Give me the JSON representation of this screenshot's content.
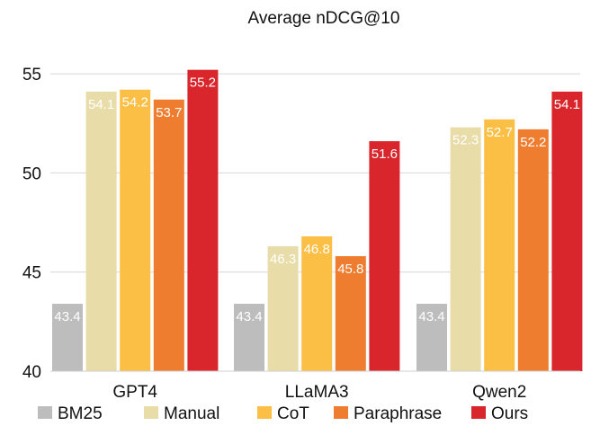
{
  "chart_data": {
    "type": "bar",
    "title": "Average nDCG@10",
    "categories": [
      "GPT4",
      "LLaMA3",
      "Qwen2"
    ],
    "ylim": [
      40,
      56
    ],
    "yticks": [
      40,
      45,
      50,
      55
    ],
    "grid": true,
    "legend_position": "bottom",
    "series": [
      {
        "name": "BM25",
        "color": "#bdbdbd",
        "values": [
          43.4,
          43.4,
          43.4
        ]
      },
      {
        "name": "Manual",
        "color": "#e8dca8",
        "values": [
          54.1,
          46.3,
          52.3
        ]
      },
      {
        "name": "CoT",
        "color": "#fbbf45",
        "values": [
          54.2,
          46.8,
          52.7
        ]
      },
      {
        "name": "Paraphrase",
        "color": "#ee7d30",
        "values": [
          53.7,
          45.8,
          52.2
        ]
      },
      {
        "name": "Ours",
        "color": "#d9262c",
        "values": [
          55.2,
          51.6,
          54.1
        ]
      }
    ]
  }
}
